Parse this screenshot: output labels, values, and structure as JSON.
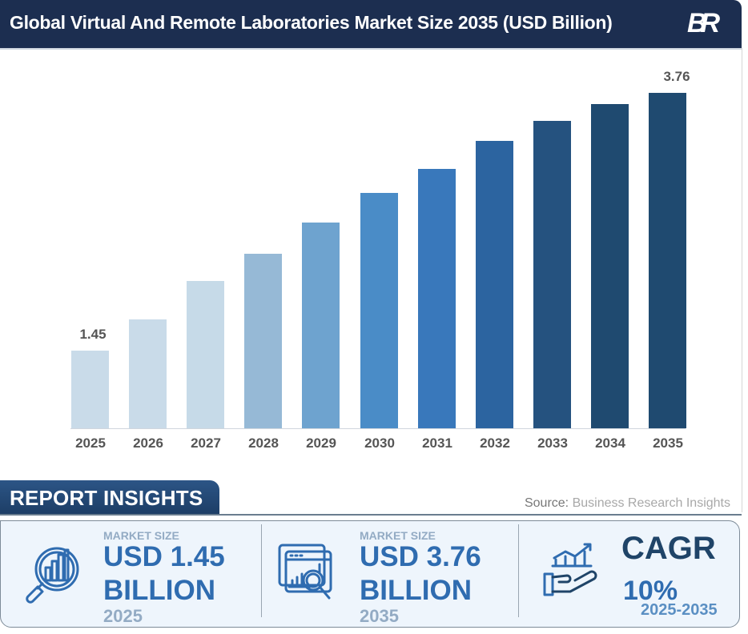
{
  "header": {
    "title": "Global Virtual And Remote Laboratories Market Size 2035 (USD Billion)",
    "logo_text": "BR"
  },
  "chart_data": {
    "type": "bar",
    "title": "Global Virtual And Remote Laboratories Market Size 2035 (USD Billion)",
    "xlabel": "",
    "ylabel": "USD Billion",
    "categories": [
      "2025",
      "2026",
      "2027",
      "2028",
      "2029",
      "2030",
      "2031",
      "2032",
      "2033",
      "2034",
      "2035"
    ],
    "values": [
      1.45,
      1.73,
      2.07,
      2.32,
      2.6,
      2.86,
      3.08,
      3.33,
      3.51,
      3.66,
      3.76
    ],
    "data_labels": {
      "0": "1.45",
      "10": "3.76"
    },
    "bar_colors": [
      "#c9dbe9",
      "#c9dbe9",
      "#c6dae8",
      "#96b9d6",
      "#6ea3cf",
      "#4a8cc7",
      "#3978bb",
      "#2c64a0",
      "#25527f",
      "#1f4a70",
      "#1f4a70"
    ],
    "grid": false,
    "legend": null
  },
  "insights": {
    "tab_label": "REPORT INSIGHTS",
    "source_prefix": "Source: ",
    "source_name": "Business Research Insights",
    "cards": [
      {
        "label": "MARKET SIZE",
        "value_line1": "USD 1.45",
        "value_line2": "BILLION",
        "year": "2025",
        "icon": "magnifier-chart-icon"
      },
      {
        "label": "MARKET SIZE",
        "value_line1": "USD 3.76",
        "value_line2": "BILLION",
        "year": "2035",
        "icon": "dashboard-magnifier-icon"
      },
      {
        "label": "CAGR",
        "value": "10%",
        "range": "2025-2035",
        "icon": "hand-growth-chart-icon"
      }
    ]
  }
}
